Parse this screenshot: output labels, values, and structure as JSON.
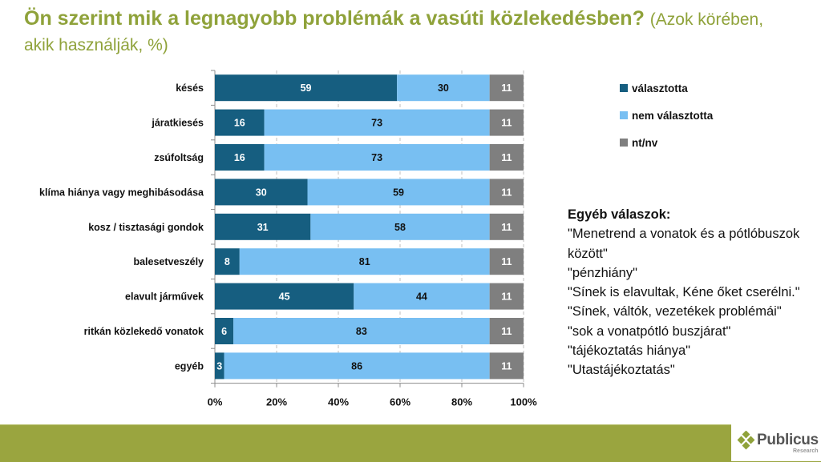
{
  "title": {
    "main": "Ön szerint mik a legnagyobb problémák a vasúti közlekedésben?",
    "sub": "(Azok körében, akik használják, %)"
  },
  "chart_data": {
    "type": "bar",
    "orientation": "horizontal",
    "stacked": "percent",
    "title": "Ön szerint mik a legnagyobb problémák a vasúti közlekedésben? (Azok körében, akik használják, %)",
    "xlabel": "",
    "ylabel": "",
    "xlim": [
      0,
      100
    ],
    "x_ticks": [
      "0%",
      "20%",
      "40%",
      "60%",
      "80%",
      "100%"
    ],
    "grid": "vertical dashed",
    "legend_position": "right",
    "categories": [
      "késés",
      "járatkiesés",
      "zsúfoltság",
      "klíma hiánya vagy meghibásodása",
      "kosz / tisztasági gondok",
      "balesetveszély",
      "elavult járművek",
      "ritkán közlekedő vonatok",
      "egyéb"
    ],
    "series": [
      {
        "name": "választotta",
        "color": "#165E80",
        "label_color": "#ffffff",
        "values": [
          59,
          16,
          16,
          30,
          31,
          8,
          45,
          6,
          3
        ]
      },
      {
        "name": "nem választotta",
        "color": "#78BFF2",
        "label_color": "#111111",
        "values": [
          30,
          73,
          73,
          59,
          58,
          81,
          44,
          83,
          86
        ]
      },
      {
        "name": "nt/nv",
        "color": "#7F7F7F",
        "label_color": "#ffffff",
        "values": [
          11,
          11,
          11,
          11,
          11,
          11,
          11,
          11,
          11
        ]
      }
    ]
  },
  "other_answers": {
    "title": "Egyéb válaszok:",
    "items": [
      "\"Menetrend a vonatok és a pótlóbuszok között\"",
      "\"pénzhiány\"",
      "\"Sínek is elavultak, Kéne őket cserélni.\"",
      "\"Sínek, váltók, vezetékek problémái\"",
      "\"sok a vonatpótló buszjárat\"",
      "\"tájékoztatás hiánya\"",
      "\"Utastájékoztatás\""
    ]
  },
  "footer": {
    "brand": "Publicus",
    "brand_sub": "Research",
    "bar_color": "#9AA53F"
  }
}
